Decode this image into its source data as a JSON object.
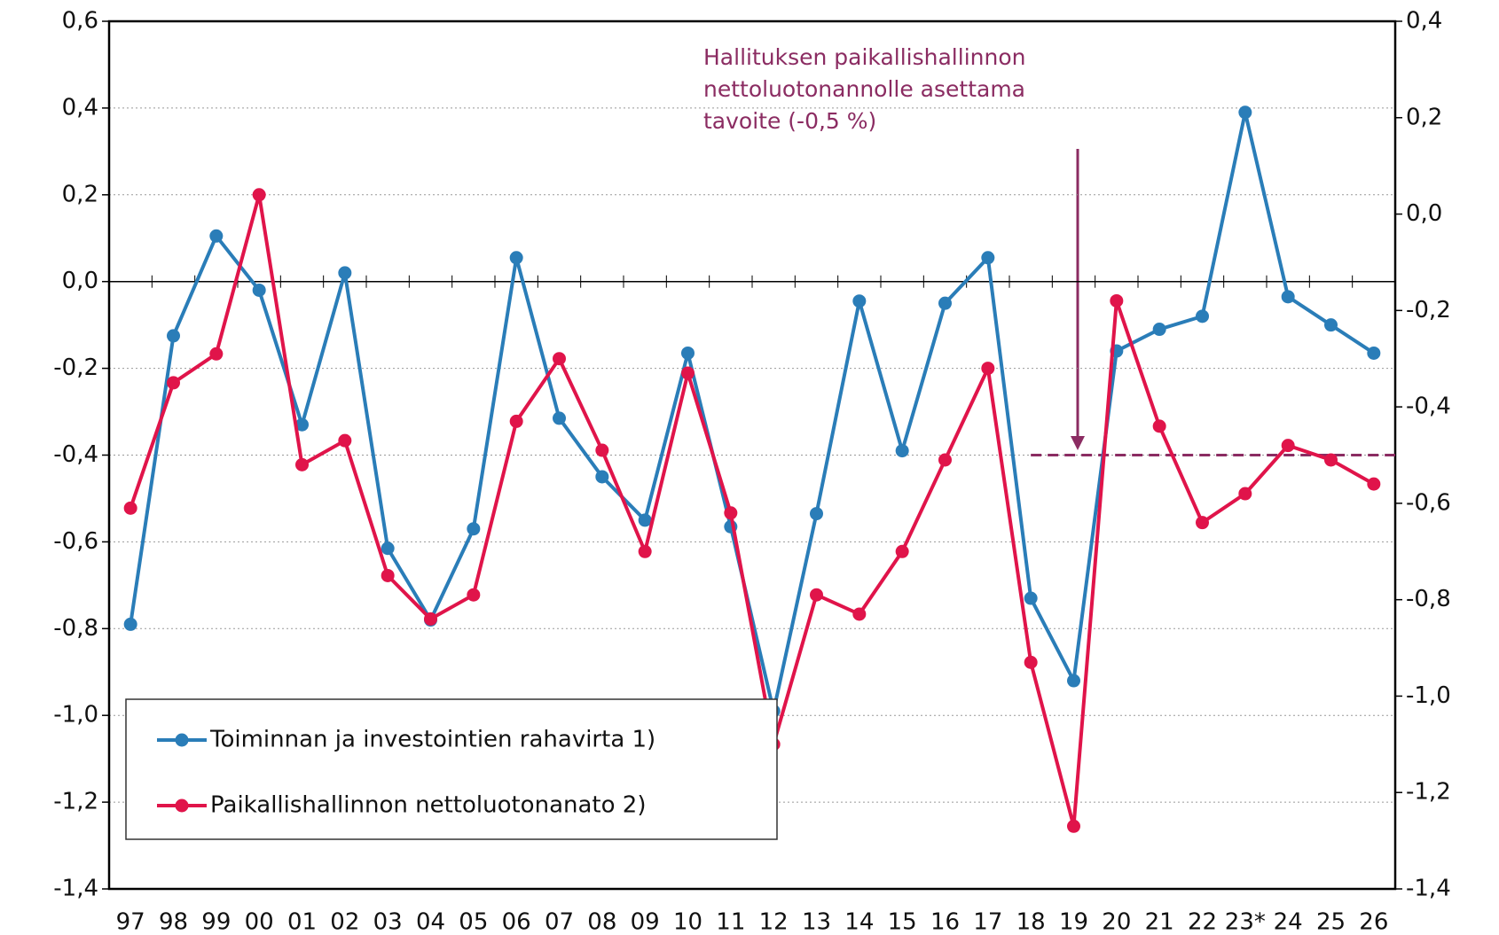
{
  "chart_data": {
    "type": "line",
    "annotation": [
      "Hallituksen paikallishallinnon",
      "nettoluotonannolle asettama",
      "tavoite (-0,5 %)"
    ],
    "categories": [
      "97",
      "98",
      "99",
      "00",
      "01",
      "02",
      "03",
      "04",
      "05",
      "06",
      "07",
      "08",
      "09",
      "10",
      "11",
      "12",
      "13",
      "14",
      "15",
      "16",
      "17",
      "18",
      "19",
      "20",
      "21",
      "22",
      "23*",
      "24",
      "25",
      "26"
    ],
    "series": [
      {
        "name": "Toiminnan ja investointien rahavirta 1)",
        "color": "#2a7db8",
        "values": [
          -0.79,
          -0.125,
          0.105,
          -0.02,
          -0.33,
          0.02,
          -0.615,
          -0.78,
          -0.57,
          0.055,
          -0.315,
          -0.45,
          -0.55,
          -0.165,
          -0.565,
          -0.99,
          -0.535,
          -0.045,
          -0.39,
          -0.05,
          0.055,
          -0.73,
          -0.92,
          -0.16,
          -0.11,
          -0.08,
          0.39,
          -0.035,
          -0.1,
          -0.165
        ]
      },
      {
        "name": "Paikallishallinnon nettoluotonanato 2)",
        "color": "#e0144a",
        "axis": "y2",
        "values": [
          -0.61,
          -0.35,
          -0.29,
          0.04,
          -0.52,
          -0.47,
          -0.75,
          -0.84,
          -0.79,
          -0.43,
          -0.3,
          -0.49,
          -0.7,
          -0.33,
          -0.62,
          -1.1,
          -0.79,
          -0.83,
          -0.7,
          -0.51,
          -0.32,
          -0.93,
          -1.27,
          -0.18,
          -0.44,
          -0.64,
          -0.58,
          -0.48,
          -0.51,
          -0.56
        ]
      }
    ],
    "target_line": {
      "value": -0.5,
      "axis": "y2",
      "from": "18",
      "color": "#8b2c62"
    },
    "ylim": [
      -1.4,
      0.6
    ],
    "yticks": [
      {
        "value": -1.4,
        "label": "-1,4"
      },
      {
        "value": -1.2,
        "label": "-1,2"
      },
      {
        "value": -1.0,
        "label": "-1,0"
      },
      {
        "value": -0.8,
        "label": "-0,8"
      },
      {
        "value": -0.6,
        "label": "-0,6"
      },
      {
        "value": -0.4,
        "label": "-0,4"
      },
      {
        "value": -0.2,
        "label": "-0,2"
      },
      {
        "value": 0,
        "label": "0,0"
      },
      {
        "value": 0.2,
        "label": "0,2"
      },
      {
        "value": 0.4,
        "label": "0,4"
      },
      {
        "value": 0.6,
        "label": "0,6"
      }
    ],
    "y2lim": [
      -1.4,
      0.4
    ],
    "y2ticks": [
      {
        "value": -1.4,
        "label": "-1,4"
      },
      {
        "value": -1.2,
        "label": "-1,2"
      },
      {
        "value": -1.0,
        "label": "-1,0"
      },
      {
        "value": -0.8,
        "label": "-0,8"
      },
      {
        "value": -0.6,
        "label": "-0,6"
      },
      {
        "value": -0.4,
        "label": "-0,4"
      },
      {
        "value": -0.2,
        "label": "-0,2"
      },
      {
        "value": 0,
        "label": "0,0"
      },
      {
        "value": 0.2,
        "label": "0,2"
      },
      {
        "value": 0.4,
        "label": "0,4"
      }
    ],
    "grid": true
  }
}
